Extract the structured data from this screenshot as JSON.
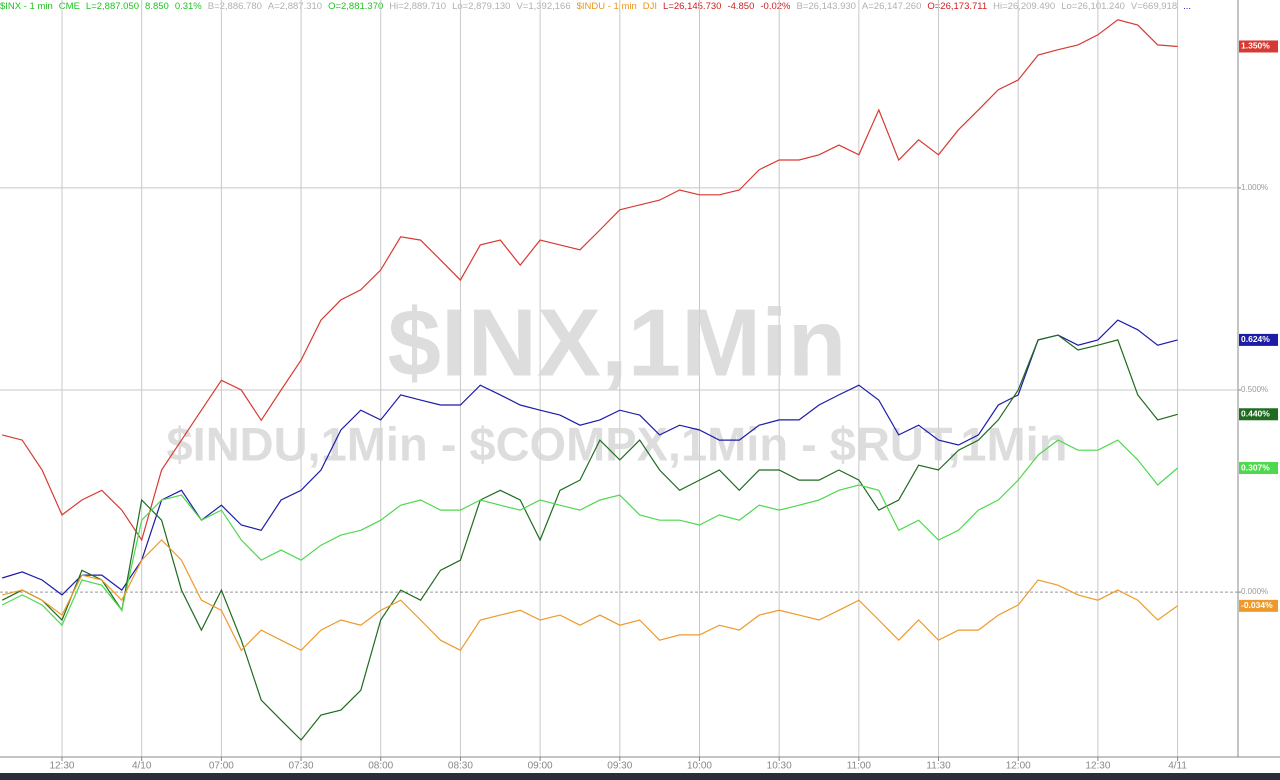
{
  "chart_data": {
    "type": "line",
    "watermark": "$INX,1Min",
    "watermark2": "$INDU,1Min - $COMPX,1Min - $RUT,1Min",
    "header": [
      {
        "text": "$INX - 1 min",
        "color": "#22c022"
      },
      {
        "text": "CME",
        "color": "#22c022"
      },
      {
        "text": "L=2,887.050",
        "color": "#22c022"
      },
      {
        "text": "8.850",
        "color": "#22c022"
      },
      {
        "text": "0.31%",
        "color": "#22c022"
      },
      {
        "text": "B=2,886.780",
        "color": "#b0b0b0"
      },
      {
        "text": "A=2,887.310",
        "color": "#b0b0b0"
      },
      {
        "text": "O=2,881.370",
        "color": "#22c022"
      },
      {
        "text": "Hi=2,889.710",
        "color": "#b0b0b0"
      },
      {
        "text": "Lo=2,879.130",
        "color": "#b0b0b0"
      },
      {
        "text": "V=1,392,166",
        "color": "#b0b0b0"
      },
      {
        "text": "$INDU - 1 min",
        "color": "#e8961e"
      },
      {
        "text": "DJI",
        "color": "#e8961e"
      },
      {
        "text": "L=26,145.730",
        "color": "#cc2020"
      },
      {
        "text": "-4.850",
        "color": "#cc2020"
      },
      {
        "text": "-0.02%",
        "color": "#cc2020"
      },
      {
        "text": "B=26,143.930",
        "color": "#b0b0b0"
      },
      {
        "text": "A=26,147.260",
        "color": "#b0b0b0"
      },
      {
        "text": "O=26,173.711",
        "color": "#cc2020"
      },
      {
        "text": "Hi=26,209.490",
        "color": "#b0b0b0"
      },
      {
        "text": "Lo=26,101.240",
        "color": "#b0b0b0"
      },
      {
        "text": "V=669,918",
        "color": "#b0b0b0"
      },
      {
        "text": "...",
        "color": "#2020c0"
      }
    ],
    "xlim": [
      -0.778,
      14.758
    ],
    "xticks": [
      {
        "value": 0,
        "label": "12:30"
      },
      {
        "value": 1,
        "label": "4/10"
      },
      {
        "value": 2,
        "label": "07:00"
      },
      {
        "value": 3,
        "label": "07:30"
      },
      {
        "value": 4,
        "label": "08:00"
      },
      {
        "value": 5,
        "label": "08:30"
      },
      {
        "value": 6,
        "label": "09:00"
      },
      {
        "value": 7,
        "label": "09:30"
      },
      {
        "value": 8,
        "label": "10:00"
      },
      {
        "value": 9,
        "label": "10:30"
      },
      {
        "value": 10,
        "label": "11:00"
      },
      {
        "value": 11,
        "label": "11:30"
      },
      {
        "value": 12,
        "label": "12:00"
      },
      {
        "value": 13,
        "label": "12:30"
      },
      {
        "value": 14,
        "label": "4/11"
      }
    ],
    "ylim": [
      -0.408,
      1.465
    ],
    "yticks": [
      {
        "value": 0,
        "label": "0.000%"
      },
      {
        "value": 0.5,
        "label": "0.500%"
      },
      {
        "value": 1,
        "label": "1.000%"
      }
    ],
    "grid": true,
    "x": [
      -0.75,
      -0.5,
      -0.25,
      0,
      0.25,
      0.5,
      0.75,
      1,
      1.25,
      1.5,
      1.75,
      2,
      2.25,
      2.5,
      2.75,
      3,
      3.25,
      3.5,
      3.75,
      4,
      4.25,
      4.5,
      4.75,
      5,
      5.25,
      5.5,
      5.75,
      6,
      6.25,
      6.5,
      6.75,
      7,
      7.25,
      7.5,
      7.75,
      8,
      8.25,
      8.5,
      8.75,
      9,
      9.25,
      9.5,
      9.75,
      10,
      10.25,
      10.5,
      10.75,
      11,
      11.25,
      11.5,
      11.75,
      12,
      12.25,
      12.5,
      12.75,
      13,
      13.25,
      13.5,
      13.75,
      14
    ],
    "series": [
      {
        "color": "#d63a32",
        "end_label": "1.350%",
        "values": [
          0.389,
          0.376,
          0.302,
          0.191,
          0.228,
          0.252,
          0.203,
          0.129,
          0.302,
          0.376,
          0.45,
          0.524,
          0.5,
          0.425,
          0.5,
          0.574,
          0.673,
          0.723,
          0.748,
          0.797,
          0.879,
          0.871,
          0.822,
          0.772,
          0.859,
          0.871,
          0.809,
          0.871,
          0.859,
          0.847,
          0.896,
          0.946,
          0.958,
          0.97,
          0.995,
          0.983,
          0.983,
          0.995,
          1.045,
          1.069,
          1.069,
          1.082,
          1.106,
          1.082,
          1.193,
          1.069,
          1.119,
          1.082,
          1.144,
          1.193,
          1.243,
          1.267,
          1.329,
          1.342,
          1.354,
          1.379,
          1.416,
          1.403,
          1.354,
          1.35
        ]
      },
      {
        "color": "#1c1ca8",
        "end_label": "0.624%",
        "values": [
          0.035,
          0.05,
          0.03,
          -0.007,
          0.042,
          0.042,
          0.005,
          0.079,
          0.228,
          0.252,
          0.178,
          0.215,
          0.166,
          0.153,
          0.228,
          0.252,
          0.302,
          0.401,
          0.45,
          0.426,
          0.488,
          0.475,
          0.463,
          0.463,
          0.512,
          0.488,
          0.463,
          0.45,
          0.438,
          0.413,
          0.426,
          0.45,
          0.438,
          0.389,
          0.413,
          0.401,
          0.376,
          0.376,
          0.413,
          0.426,
          0.426,
          0.463,
          0.488,
          0.512,
          0.475,
          0.389,
          0.413,
          0.376,
          0.364,
          0.389,
          0.463,
          0.488,
          0.624,
          0.636,
          0.611,
          0.624,
          0.673,
          0.649,
          0.611,
          0.624
        ]
      },
      {
        "color": "#1f6b1f",
        "end_label": "0.440%",
        "values": [
          -0.02,
          0.005,
          -0.02,
          -0.069,
          0.054,
          0.03,
          -0.045,
          0.228,
          0.178,
          0.005,
          -0.094,
          0.005,
          -0.119,
          -0.267,
          -0.317,
          -0.366,
          -0.304,
          -0.292,
          -0.243,
          -0.069,
          0.005,
          -0.02,
          0.054,
          0.079,
          0.228,
          0.252,
          0.228,
          0.129,
          0.252,
          0.277,
          0.376,
          0.327,
          0.376,
          0.302,
          0.252,
          0.277,
          0.302,
          0.252,
          0.302,
          0.302,
          0.277,
          0.277,
          0.302,
          0.277,
          0.203,
          0.228,
          0.314,
          0.302,
          0.351,
          0.376,
          0.426,
          0.5,
          0.624,
          0.636,
          0.599,
          0.611,
          0.624,
          0.488,
          0.426,
          0.44
        ]
      },
      {
        "name": "$INX - 1 min",
        "color": "#4ed84e",
        "end_label": "0.307%",
        "values": [
          -0.032,
          -0.007,
          -0.032,
          -0.082,
          0.03,
          0.017,
          -0.045,
          0.178,
          0.228,
          0.24,
          0.178,
          0.203,
          0.129,
          0.079,
          0.104,
          0.079,
          0.116,
          0.141,
          0.153,
          0.178,
          0.215,
          0.228,
          0.203,
          0.203,
          0.228,
          0.215,
          0.203,
          0.228,
          0.215,
          0.203,
          0.228,
          0.24,
          0.191,
          0.178,
          0.178,
          0.166,
          0.191,
          0.178,
          0.215,
          0.203,
          0.215,
          0.228,
          0.252,
          0.265,
          0.252,
          0.153,
          0.178,
          0.129,
          0.153,
          0.203,
          0.228,
          0.277,
          0.339,
          0.376,
          0.351,
          0.351,
          0.376,
          0.327,
          0.265,
          0.307
        ]
      },
      {
        "name": "$INDU - 1 min",
        "color": "#ee9a2a",
        "end_label": "-0.034%",
        "values": [
          -0.007,
          0.005,
          -0.02,
          -0.057,
          0.042,
          0.03,
          -0.02,
          0.079,
          0.129,
          0.079,
          -0.02,
          -0.045,
          -0.144,
          -0.094,
          -0.119,
          -0.144,
          -0.094,
          -0.069,
          -0.082,
          -0.045,
          -0.02,
          -0.069,
          -0.119,
          -0.144,
          -0.069,
          -0.057,
          -0.045,
          -0.069,
          -0.057,
          -0.082,
          -0.057,
          -0.082,
          -0.069,
          -0.119,
          -0.106,
          -0.106,
          -0.082,
          -0.094,
          -0.057,
          -0.045,
          -0.057,
          -0.069,
          -0.045,
          -0.02,
          -0.069,
          -0.119,
          -0.069,
          -0.119,
          -0.094,
          -0.094,
          -0.057,
          -0.032,
          0.03,
          0.017,
          -0.007,
          -0.02,
          0.005,
          -0.02,
          -0.069,
          -0.034
        ]
      }
    ]
  }
}
